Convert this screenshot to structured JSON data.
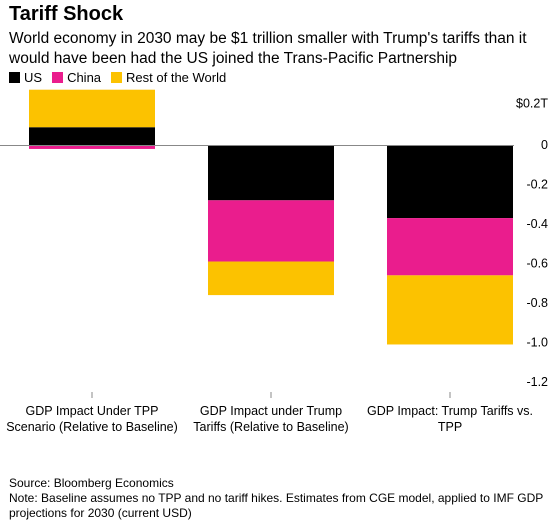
{
  "title": "Tariff Shock",
  "subtitle": "World economy in 2030 may be $1 trillion smaller with Trump's tariffs than it would have been had the US joined the Trans-Pacific Partnership",
  "footer": {
    "source": "Source: Bloomberg Economics",
    "note": "Note: Baseline assumes no TPP and no tariff hikes. Estimates from CGE model, applied to IMF GDP projections for 2030 (current USD)"
  },
  "colors": {
    "US": "#000000",
    "China": "#ea1d8d",
    "Rest of the World": "#fcc200"
  },
  "chart_data": {
    "type": "bar",
    "stacked": true,
    "categories": [
      "GDP Impact Under TPP Scenario (Relative to Baseline)",
      "GDP Impact under Trump Tariffs (Relative to Baseline)",
      "GDP Impact: Trump Tariffs vs. TPP"
    ],
    "category_lines": [
      [
        "GDP Impact Under TPP",
        "Scenario (Relative to Baseline)"
      ],
      [
        "GDP Impact under Trump",
        "Tariffs (Relative to Baseline)"
      ],
      [
        "GDP Impact: Trump Tariffs vs.",
        "TPP"
      ]
    ],
    "series": [
      {
        "name": "US",
        "values": [
          0.09,
          -0.28,
          -0.37
        ]
      },
      {
        "name": "China",
        "values": [
          -0.02,
          -0.31,
          -0.29
        ]
      },
      {
        "name": "Rest of the World",
        "values": [
          0.19,
          -0.17,
          -0.35
        ]
      }
    ],
    "ylim": [
      -1.2,
      0.2
    ],
    "yticks": [
      0.2,
      0,
      -0.2,
      -0.4,
      -0.6,
      -0.8,
      -1.0,
      -1.2
    ],
    "ytick_labels": [
      "$0.2T",
      "0",
      "-0.2",
      "-0.4",
      "-0.6",
      "-0.8",
      "-1.0",
      "-1.2"
    ],
    "y_axis_position": "right",
    "legend": "top-left",
    "grid": false
  }
}
